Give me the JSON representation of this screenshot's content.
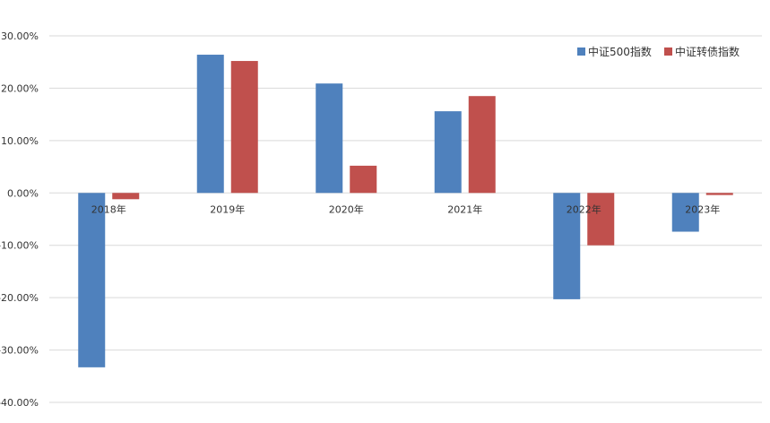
{
  "chart_data": {
    "type": "bar",
    "title": "",
    "xlabel": "",
    "ylabel": "",
    "categories": [
      "2018年",
      "2019年",
      "2020年",
      "2021年",
      "2022年",
      "2023年"
    ],
    "series": [
      {
        "name": "中证500指数",
        "color": "#4f81bd",
        "values": [
          -33.3,
          26.4,
          20.9,
          15.6,
          -20.3,
          -7.4
        ]
      },
      {
        "name": "中证转债指数",
        "color": "#c0504d",
        "values": [
          -1.2,
          25.2,
          5.2,
          18.5,
          -10.0,
          -0.4
        ]
      }
    ],
    "ylim": [
      -40,
      30
    ],
    "yticks": [
      "30.00%",
      "20.00%",
      "10.00%",
      "0.00%",
      "-10.00%",
      "-20.00%",
      "-30.00%",
      "-40.00%"
    ],
    "grid": true,
    "legend_position": "top-right"
  }
}
